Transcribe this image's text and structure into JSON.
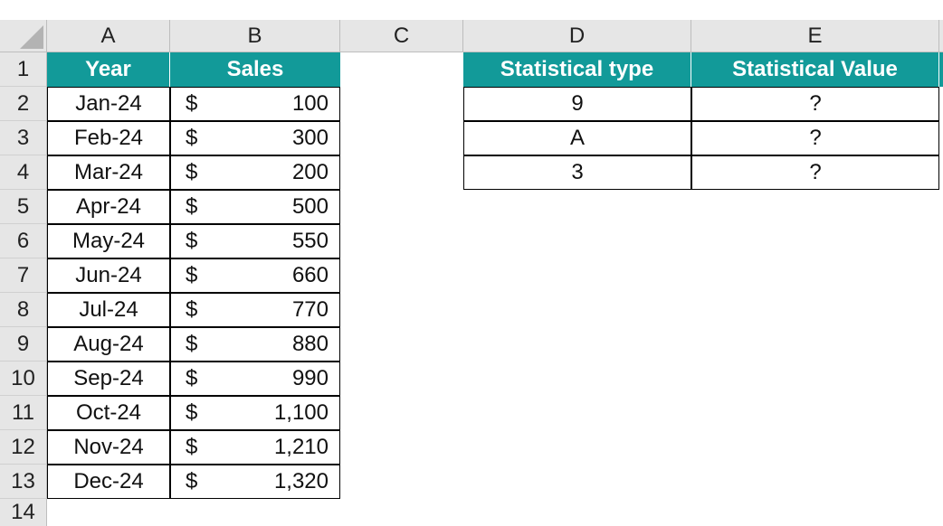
{
  "columns": [
    "A",
    "B",
    "C",
    "D",
    "E"
  ],
  "rows": [
    "1",
    "2",
    "3",
    "4",
    "5",
    "6",
    "7",
    "8",
    "9",
    "10",
    "11",
    "12",
    "13",
    "14"
  ],
  "sales_table": {
    "headers": {
      "year": "Year",
      "sales": "Sales"
    },
    "currency_symbol": "$",
    "records": [
      {
        "year": "Jan-24",
        "sales": "100"
      },
      {
        "year": "Feb-24",
        "sales": "300"
      },
      {
        "year": "Mar-24",
        "sales": "200"
      },
      {
        "year": "Apr-24",
        "sales": "500"
      },
      {
        "year": "May-24",
        "sales": "550"
      },
      {
        "year": "Jun-24",
        "sales": "660"
      },
      {
        "year": "Jul-24",
        "sales": "770"
      },
      {
        "year": "Aug-24",
        "sales": "880"
      },
      {
        "year": "Sep-24",
        "sales": "990"
      },
      {
        "year": "Oct-24",
        "sales": "1,100"
      },
      {
        "year": "Nov-24",
        "sales": "1,210"
      },
      {
        "year": "Dec-24",
        "sales": "1,320"
      }
    ]
  },
  "stats_table": {
    "headers": {
      "type": "Statistical type",
      "value": "Statistical Value"
    },
    "records": [
      {
        "type": "9",
        "value": "?"
      },
      {
        "type": "A",
        "value": "?"
      },
      {
        "type": "3",
        "value": "?"
      }
    ]
  },
  "colors": {
    "header_fill": "#129a99",
    "header_text": "#ffffff",
    "heading_strip": "#e6e6e6"
  }
}
